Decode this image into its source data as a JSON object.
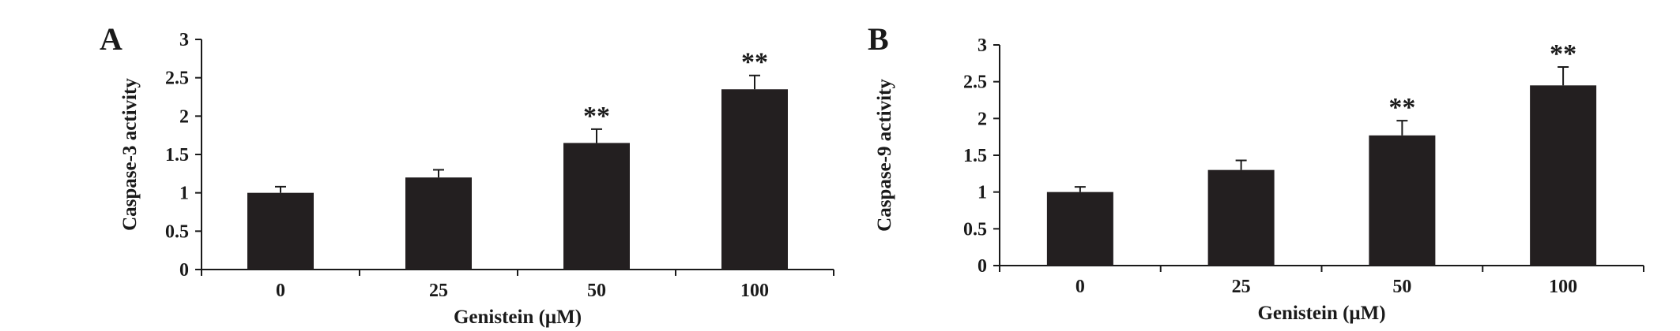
{
  "chart_data": [
    {
      "panel_label": "A",
      "type": "bar",
      "categories": [
        "0",
        "25",
        "50",
        "100"
      ],
      "values": [
        1.0,
        1.2,
        1.65,
        2.35
      ],
      "errors": [
        0.08,
        0.1,
        0.18,
        0.18
      ],
      "annotations": [
        "",
        "",
        "**",
        "**"
      ],
      "ylabel": "Caspase-3 activity",
      "xlabel": "Genistein (μM)",
      "ylim": [
        0,
        3
      ],
      "yticks": [
        "0",
        "0.5",
        "1",
        "1.5",
        "2",
        "2.5",
        "3"
      ],
      "bar_color": "#231f20",
      "grid": false,
      "legend": "none"
    },
    {
      "panel_label": "B",
      "type": "bar",
      "categories": [
        "0",
        "25",
        "50",
        "100"
      ],
      "values": [
        1.0,
        1.3,
        1.77,
        2.45
      ],
      "errors": [
        0.07,
        0.13,
        0.2,
        0.25
      ],
      "annotations": [
        "",
        "",
        "**",
        "**"
      ],
      "ylabel": "Caspase-9 activity",
      "xlabel": "Genistein (μM)",
      "ylim": [
        0,
        3
      ],
      "yticks": [
        "0",
        "0.5",
        "1",
        "1.5",
        "2",
        "2.5",
        "3"
      ],
      "bar_color": "#231f20",
      "grid": false,
      "legend": "none"
    }
  ]
}
